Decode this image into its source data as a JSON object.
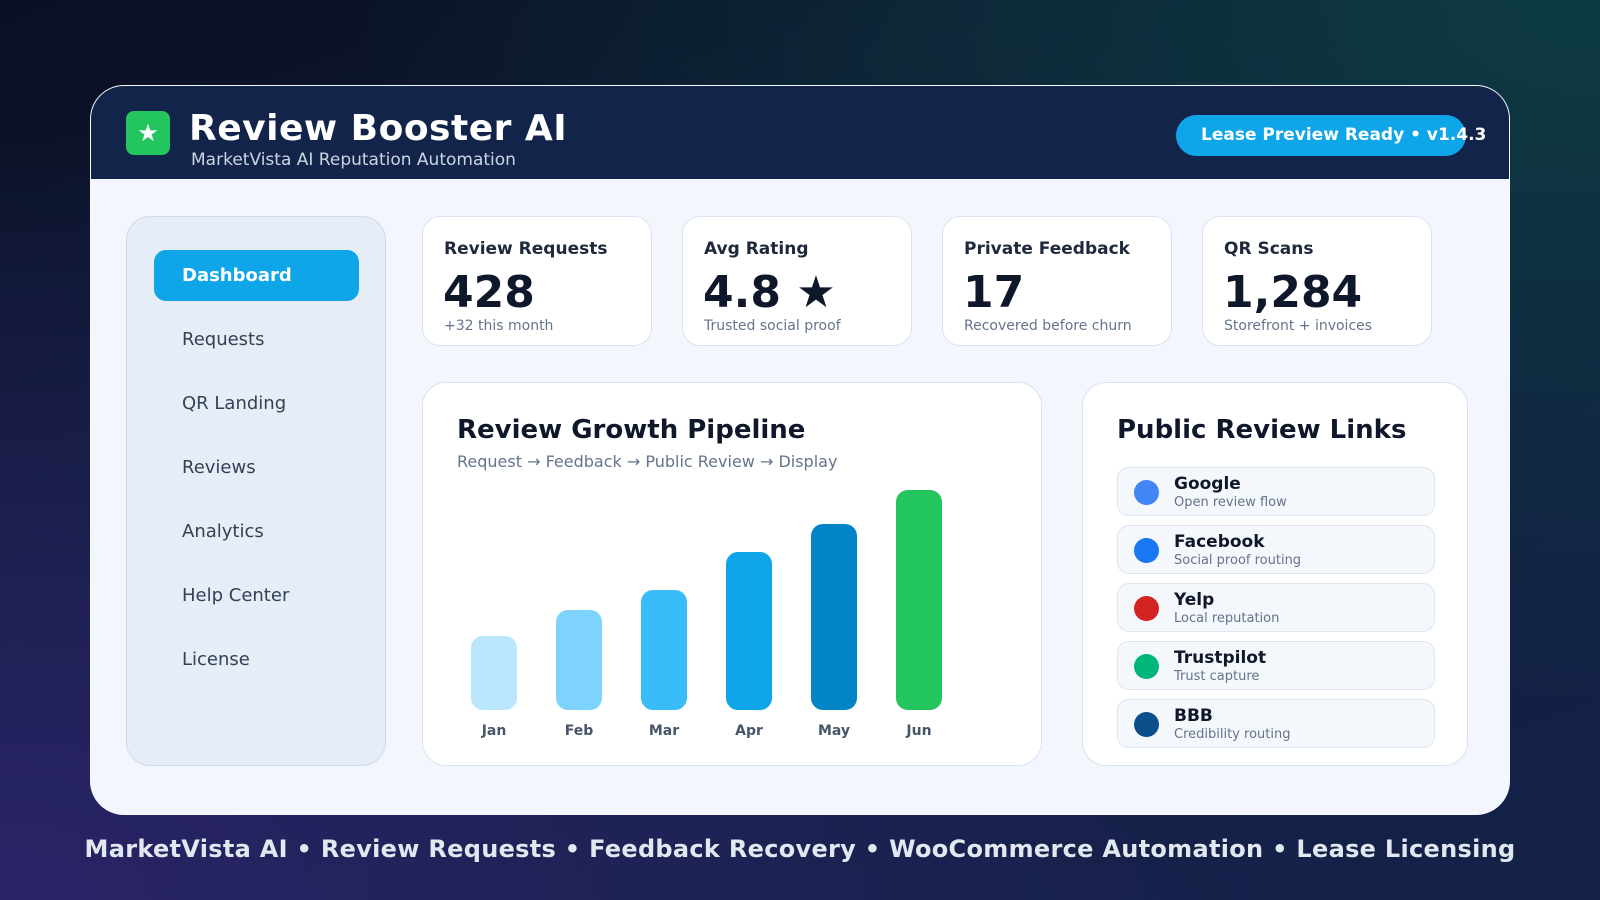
{
  "header": {
    "logo_glyph": "★",
    "title": "Review Booster AI",
    "subtitle": "MarketVista AI Reputation Automation",
    "status": "Lease Preview Ready • v1.4.3"
  },
  "sidebar": {
    "items": [
      {
        "label": "Dashboard",
        "active": true
      },
      {
        "label": "Requests"
      },
      {
        "label": "QR Landing"
      },
      {
        "label": "Reviews"
      },
      {
        "label": "Analytics"
      },
      {
        "label": "Help Center"
      },
      {
        "label": "License"
      }
    ]
  },
  "stats": [
    {
      "label": "Review Requests",
      "value": "428",
      "note": "+32 this month"
    },
    {
      "label": "Avg Rating",
      "value": "4.8 ★",
      "note": "Trusted social proof"
    },
    {
      "label": "Private Feedback",
      "value": "17",
      "note": "Recovered before churn"
    },
    {
      "label": "QR Scans",
      "value": "1,284",
      "note": "Storefront + invoices"
    }
  ],
  "pipeline": {
    "title": "Review Growth Pipeline",
    "subtitle": "Request → Feedback → Public Review → Display"
  },
  "chart_data": {
    "type": "bar",
    "categories": [
      "Jan",
      "Feb",
      "Mar",
      "Apr",
      "May",
      "Jun"
    ],
    "values": [
      74,
      100,
      120,
      158,
      186,
      220
    ],
    "colors": [
      "#bae6fd",
      "#7dd3fc",
      "#38bdf8",
      "#0ea5e9",
      "#0284c7",
      "#22c55e"
    ],
    "title": "",
    "xlabel": "",
    "ylabel": "",
    "ylim": [
      0,
      220
    ],
    "grid": false,
    "legend": "none"
  },
  "links": {
    "title": "Public Review Links",
    "items": [
      {
        "name": "Google",
        "desc": "Open review flow",
        "color": "#4285f4"
      },
      {
        "name": "Facebook",
        "desc": "Social proof routing",
        "color": "#1877f2"
      },
      {
        "name": "Yelp",
        "desc": "Local reputation",
        "color": "#d32323"
      },
      {
        "name": "Trustpilot",
        "desc": "Trust capture",
        "color": "#00b67a"
      },
      {
        "name": "BBB",
        "desc": "Credibility routing",
        "color": "#0b4f8a"
      }
    ]
  },
  "footer": {
    "text": "MarketVista AI • Review Requests • Feedback Recovery • WooCommerce Automation • Lease Licensing"
  }
}
